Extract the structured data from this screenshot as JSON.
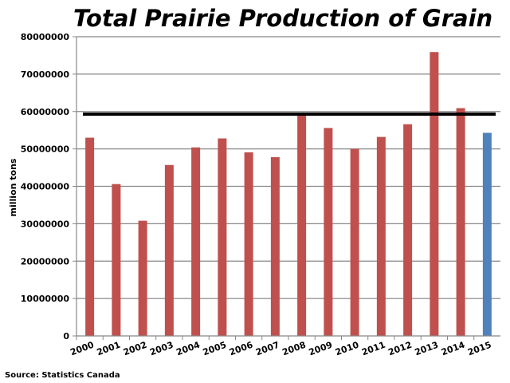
{
  "chart_data": {
    "type": "bar",
    "title": "Total Prairie Production of Grain",
    "ylabel": "million tons",
    "xlabel": "",
    "source": "Source: Statistics Canada",
    "ylim": [
      0,
      80000000
    ],
    "y_ticks": [
      "0",
      "10000000",
      "20000000",
      "30000000",
      "40000000",
      "50000000",
      "60000000",
      "70000000",
      "80000000"
    ],
    "categories": [
      "2000",
      "2001",
      "2002",
      "2003",
      "2004",
      "2005",
      "2006",
      "2007",
      "2008",
      "2009",
      "2010",
      "2011",
      "2012",
      "2013",
      "2014",
      "2015"
    ],
    "values": [
      53000000,
      40600000,
      30800000,
      45700000,
      50400000,
      52800000,
      49100000,
      47800000,
      59200000,
      55600000,
      50000000,
      53200000,
      56600000,
      75900000,
      60900000,
      54300000
    ],
    "reference_line": 59300000,
    "grid": true,
    "colors": {
      "bar": "#c0504d",
      "highlight_bar": "#4f81bd",
      "reference_line": "#000000",
      "grid": "#888888"
    },
    "highlight_index": 15
  }
}
